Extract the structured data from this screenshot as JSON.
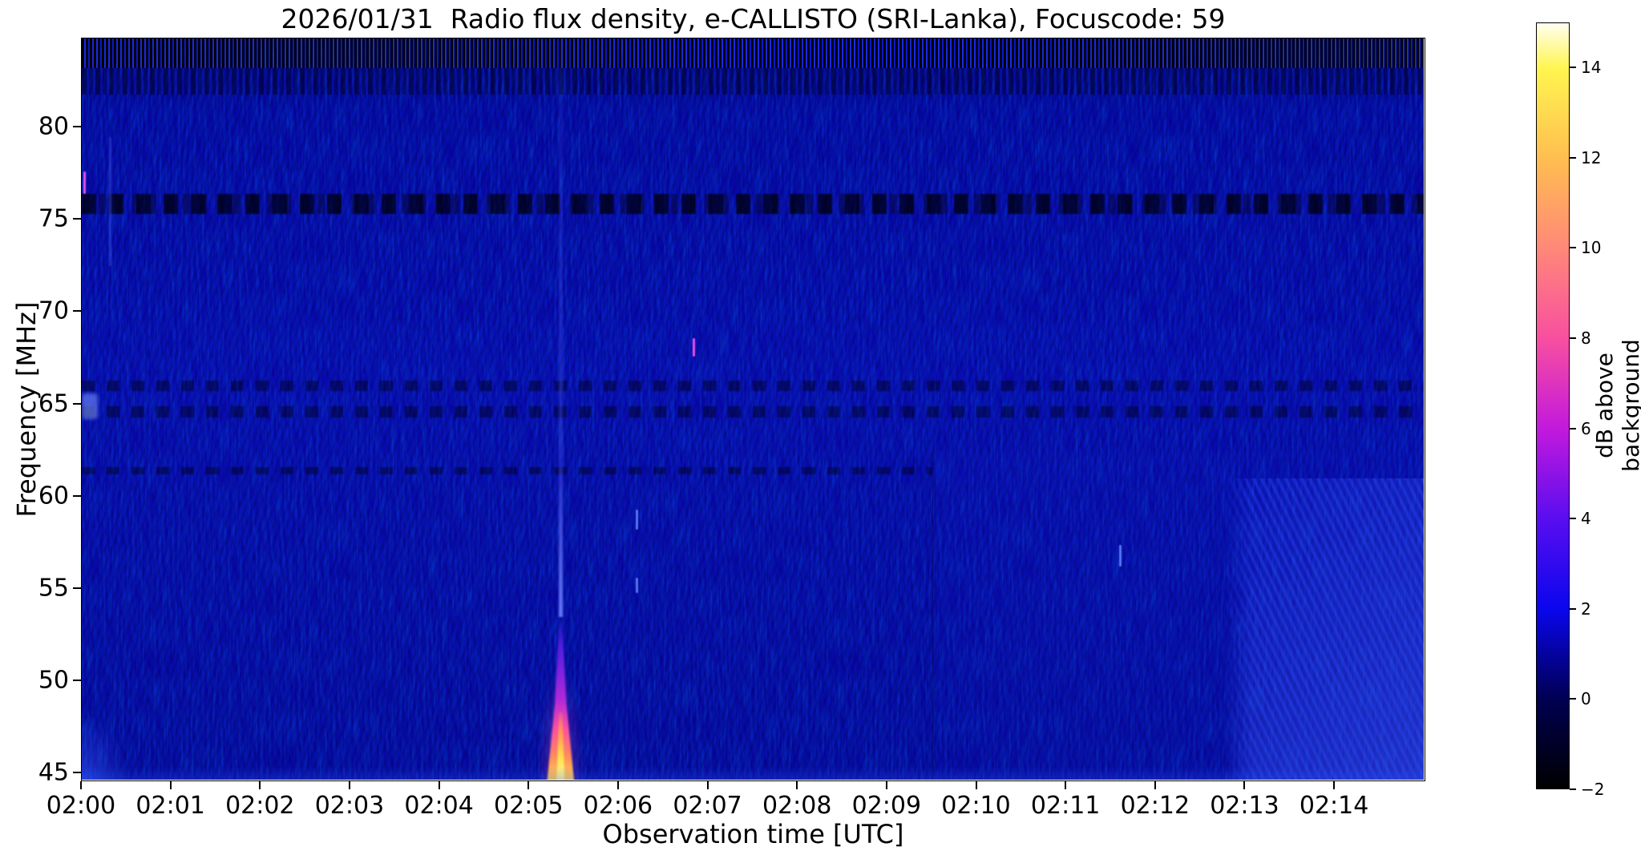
{
  "title": "2026/01/31  Radio flux density, e-CALLISTO (SRI-Lanka), Focuscode: 59",
  "chart_data": {
    "type": "heatmap",
    "title": "2026/01/31  Radio flux density, e-CALLISTO (SRI-Lanka), Focuscode: 59",
    "xlabel": "Observation time [UTC]",
    "ylabel": "Frequency [MHz]",
    "x_tick_labels": [
      "02:00",
      "02:01",
      "02:02",
      "02:03",
      "02:04",
      "02:05",
      "02:06",
      "02:07",
      "02:08",
      "02:09",
      "02:10",
      "02:11",
      "02:12",
      "02:13",
      "02:14"
    ],
    "x_tick_minutes": [
      0,
      1,
      2,
      3,
      4,
      5,
      6,
      7,
      8,
      9,
      10,
      11,
      12,
      13,
      14
    ],
    "x_range_minutes": [
      0,
      15.02
    ],
    "y_tick_values": [
      80,
      75,
      70,
      65,
      60,
      55,
      50,
      45
    ],
    "y_range_mhz": [
      44.54,
      84.82
    ],
    "grid": false,
    "background_level": "deep blue ~0-1 dB with fine striation noise",
    "colorbar": {
      "label": "dB above background",
      "tick_values": [
        -2,
        0,
        2,
        4,
        6,
        8,
        10,
        12,
        14
      ],
      "tick_labels": [
        "−2",
        "0",
        "2",
        "4",
        "6",
        "8",
        "10",
        "12",
        "14"
      ],
      "range": [
        -2,
        15
      ],
      "position": "right",
      "stops": [
        {
          "v": -2,
          "c": "#000000"
        },
        {
          "v": 0,
          "c": "#000052"
        },
        {
          "v": 2,
          "c": "#0a06ee"
        },
        {
          "v": 4,
          "c": "#5a0df0"
        },
        {
          "v": 6,
          "c": "#c319dc"
        },
        {
          "v": 8,
          "c": "#f84fa0"
        },
        {
          "v": 10,
          "c": "#ff8878"
        },
        {
          "v": 12,
          "c": "#ffbe50"
        },
        {
          "v": 14,
          "c": "#fff550"
        },
        {
          "v": 15,
          "c": "#fffff0"
        }
      ]
    },
    "features": [
      {
        "id": "top-noise-band",
        "kind": "noise_band_strong",
        "t": [
          0,
          15.02
        ],
        "f": [
          83.2,
          84.82
        ],
        "note": "dense black/bright-blue vertical RFI striations along top edge"
      },
      {
        "id": "top-noise-band-2",
        "kind": "noise_band_weak",
        "t": [
          0,
          15.02
        ],
        "f": [
          81.8,
          83.2
        ],
        "note": "weaker mottled RFI band"
      },
      {
        "id": "rfi-band-76",
        "kind": "dark_dashed_band",
        "t": [
          0,
          15.02
        ],
        "f": [
          75.3,
          76.4
        ],
        "note": "dark dashed interference band near 75.5-76 MHz"
      },
      {
        "id": "rfi-line-66",
        "kind": "dark_dashed_line",
        "t": [
          0,
          15.02
        ],
        "f": [
          65.7,
          66.3
        ],
        "note": "dark dashed line ~66 MHz"
      },
      {
        "id": "rfi-line-65",
        "kind": "dark_dashed_line",
        "t": [
          0,
          15.02
        ],
        "f": [
          64.3,
          64.9
        ],
        "note": "dark dashed line ~64.6 MHz"
      },
      {
        "id": "rfi-line-61",
        "kind": "dark_dashed_line",
        "t": [
          0,
          9.5
        ],
        "f": [
          61.2,
          61.6
        ],
        "note": "faint dark line ~61.4 MHz"
      },
      {
        "id": "type-iii-burst",
        "kind": "burst",
        "t": 5.35,
        "f": [
          44.54,
          53.5
        ],
        "peak_db": 15,
        "note": "bright narrow type III-like burst at ~02:05:21, yellow-white core 45-47 MHz"
      },
      {
        "id": "burst-streak-low",
        "kind": "blue_streak_strong",
        "t": 5.35,
        "f": [
          53.5,
          62
        ],
        "note": "bright blue extension of burst"
      },
      {
        "id": "burst-streak-high",
        "kind": "blue_streak_faint",
        "t": 5.35,
        "f": [
          62,
          84.82
        ],
        "note": "faint blue streak of burst to top of band"
      },
      {
        "id": "sector-shade",
        "kind": "subtle_region",
        "t": [
          9.5,
          15.02
        ],
        "f": [
          44.54,
          62.5
        ],
        "note": "slightly different shading right of ~02:09:30 below 62 MHz"
      },
      {
        "id": "bright-corner-waves",
        "kind": "bright_region",
        "t": [
          12.75,
          15.02
        ],
        "f": [
          44.54,
          61
        ],
        "note": "brighter blue wavy interference bottom-right corner"
      },
      {
        "id": "left-edge-smear",
        "kind": "glow_dash",
        "t": [
          0,
          0.18
        ],
        "f": [
          64.2,
          65.6
        ],
        "note": "light blue smear at left edge ~65 MHz"
      },
      {
        "id": "left-corner-glow",
        "kind": "corner_glow",
        "t": [
          0,
          0.5
        ],
        "f": [
          44.54,
          48
        ],
        "note": "brighter blue bottom-left corner"
      },
      {
        "id": "vert-line-0220",
        "kind": "blue_line_faint",
        "t": 0.32,
        "f": [
          72.5,
          79.5
        ],
        "note": "faint vertical blue line"
      },
      {
        "id": "magenta-dash-left",
        "kind": "magenta_dash",
        "t": 0.03,
        "f": [
          76.4,
          77.6
        ],
        "note": "magenta fleck on left edge"
      },
      {
        "id": "magenta-dot-0651",
        "kind": "magenta_dash",
        "t": 6.84,
        "f": [
          67.6,
          68.6
        ],
        "note": "small magenta fleck"
      },
      {
        "id": "blue-dash-0612a",
        "kind": "blue_dash",
        "t": 6.2,
        "f": [
          58.2,
          59.3
        ],
        "note": "bright blue fleck"
      },
      {
        "id": "blue-dash-0612b",
        "kind": "blue_dash",
        "t": 6.2,
        "f": [
          54.8,
          55.6
        ],
        "note": "bright blue fleck"
      },
      {
        "id": "blue-dash-1136",
        "kind": "blue_dash",
        "t": 11.6,
        "f": [
          56.2,
          57.4
        ],
        "note": "bright blue fleck"
      },
      {
        "id": "bottom-edge-glow",
        "kind": "bottom_glow",
        "t": [
          0,
          15.02
        ],
        "f": [
          44.54,
          45.35
        ],
        "note": "brighter blue along bottom edge"
      }
    ]
  }
}
